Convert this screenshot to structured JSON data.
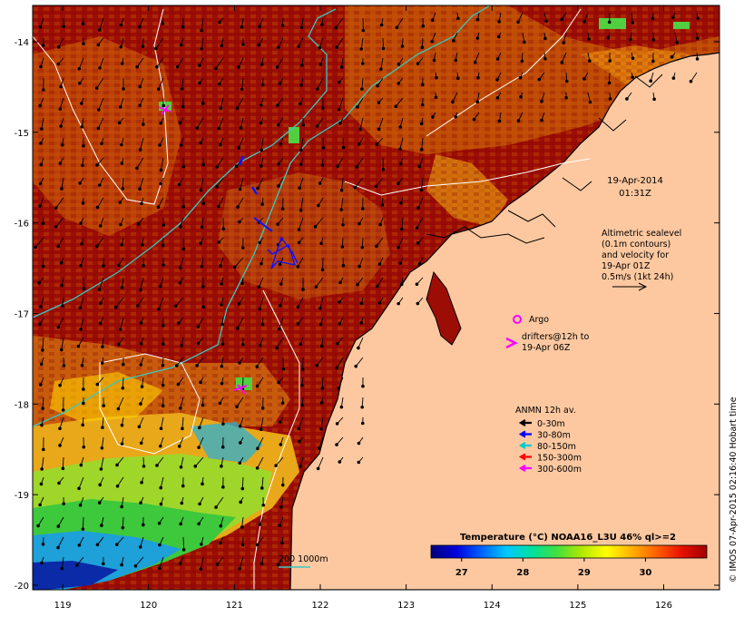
{
  "map": {
    "lon_ticks": [
      "119",
      "120",
      "121",
      "122",
      "123",
      "124",
      "125",
      "126"
    ],
    "lat_ticks": [
      "-14",
      "-15",
      "-16",
      "-17",
      "-18",
      "-19",
      "-20"
    ],
    "lon_range": [
      118.65,
      126.65
    ],
    "lat_range": [
      -20.05,
      -13.6
    ],
    "land_color": "#fdc8a0",
    "ocean_warm_color": "#9c0d05"
  },
  "annotations": {
    "timestamp_date": "19-Apr-2014",
    "timestamp_time": "01:31Z",
    "altimetry": [
      "Altimetric sealevel",
      "(0.1m contours)",
      "and velocity for",
      "19-Apr 01Z",
      "0.5m/s (1kt 24h)"
    ],
    "argo_label": "Argo",
    "drifters_lines": [
      "drifters@12h to",
      "19-Apr 06Z"
    ],
    "bathymetry_label": "200  1000m",
    "credit": "© IMOS 07-Apr-2015 02:16:40 Hobart time"
  },
  "anmn_legend": {
    "title": "ANMN 12h av.",
    "items": [
      {
        "label": "0-30m",
        "color": "#000000"
      },
      {
        "label": "30-80m",
        "color": "#0000ff"
      },
      {
        "label": "80-150m",
        "color": "#00cccc"
      },
      {
        "label": "150-300m",
        "color": "#ff0000"
      },
      {
        "label": "300-600m",
        "color": "#ff00ff"
      }
    ]
  },
  "colorbar": {
    "title": "Temperature (°C) NOAA16_L3U 46% ql>=2",
    "ticks": [
      "27",
      "28",
      "29",
      "30"
    ],
    "range": [
      26.5,
      31.0
    ],
    "stops": [
      "#00007a",
      "#0000dd",
      "#0060ff",
      "#00c8ff",
      "#00e0a0",
      "#40e040",
      "#b0e800",
      "#ffff00",
      "#ffb000",
      "#ff6000",
      "#e81000",
      "#a00000"
    ]
  }
}
